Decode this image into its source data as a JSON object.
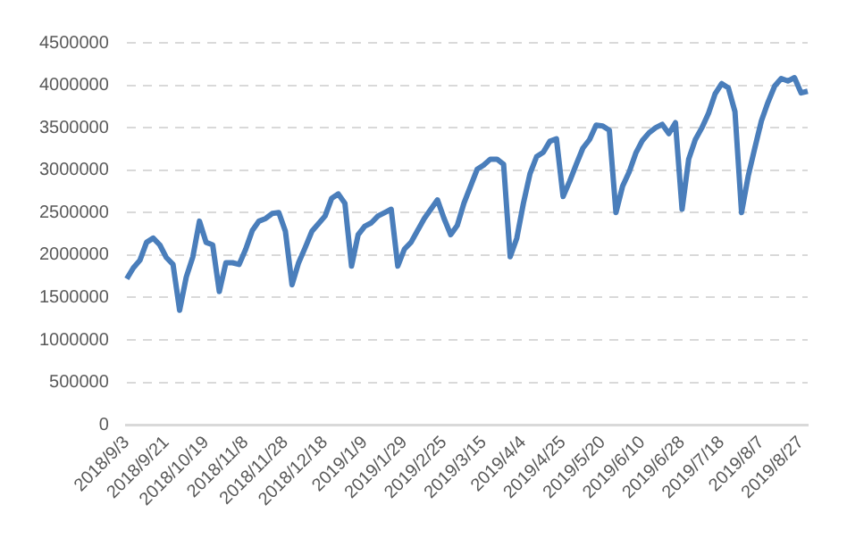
{
  "chart_data": {
    "type": "line",
    "categories": [
      "2018/9/3",
      null,
      null,
      null,
      null,
      null,
      "2018/9/21",
      null,
      null,
      null,
      null,
      null,
      "2018/10/19",
      null,
      null,
      null,
      null,
      null,
      "2018/11/8",
      null,
      null,
      null,
      null,
      null,
      "2018/11/28",
      null,
      null,
      null,
      null,
      null,
      "2018/12/18",
      null,
      null,
      null,
      null,
      null,
      "2019/1/9",
      null,
      null,
      null,
      null,
      null,
      "2019/1/29",
      null,
      null,
      null,
      null,
      null,
      "2019/2/25",
      null,
      null,
      null,
      null,
      null,
      "2019/3/15",
      null,
      null,
      null,
      null,
      null,
      "2019/4/4",
      null,
      null,
      null,
      null,
      null,
      "2019/4/25",
      null,
      null,
      null,
      null,
      null,
      "2019/5/20",
      null,
      null,
      null,
      null,
      null,
      "2019/6/10",
      null,
      null,
      null,
      null,
      null,
      "2019/6/28",
      null,
      null,
      null,
      null,
      null,
      "2019/7/18",
      null,
      null,
      null,
      null,
      null,
      "2019/8/7",
      null,
      null,
      null,
      null,
      null,
      "2019/8/27",
      null
    ],
    "series": [
      {
        "color": "#4a7ebb",
        "values": [
          1720000,
          1850000,
          1940000,
          2150000,
          2200000,
          2120000,
          1970000,
          1890000,
          1350000,
          1740000,
          1980000,
          2400000,
          2150000,
          2120000,
          1570000,
          1910000,
          1910000,
          1890000,
          2070000,
          2290000,
          2400000,
          2430000,
          2490000,
          2500000,
          2280000,
          1650000,
          1910000,
          2090000,
          2280000,
          2370000,
          2460000,
          2670000,
          2720000,
          2610000,
          1870000,
          2240000,
          2340000,
          2380000,
          2460000,
          2500000,
          2540000,
          1870000,
          2070000,
          2150000,
          2290000,
          2430000,
          2540000,
          2650000,
          2430000,
          2240000,
          2350000,
          2610000,
          2810000,
          3010000,
          3060000,
          3130000,
          3130000,
          3070000,
          1980000,
          2200000,
          2610000,
          2960000,
          3160000,
          3210000,
          3340000,
          3370000,
          2690000,
          2870000,
          3070000,
          3260000,
          3360000,
          3530000,
          3520000,
          3470000,
          2500000,
          2810000,
          2980000,
          3200000,
          3350000,
          3440000,
          3500000,
          3540000,
          3430000,
          3560000,
          2540000,
          3130000,
          3360000,
          3500000,
          3670000,
          3900000,
          4020000,
          3970000,
          3690000,
          2500000,
          2930000,
          3260000,
          3580000,
          3800000,
          3990000,
          4080000,
          4050000,
          4090000,
          3910000,
          3930000
        ]
      }
    ],
    "ylim": [
      0,
      4500000
    ],
    "yticks": [
      0,
      500000,
      1000000,
      1500000,
      2000000,
      2500000,
      3000000,
      3500000,
      4000000,
      4500000
    ],
    "grid": "y",
    "legend": false,
    "marker": "none"
  }
}
